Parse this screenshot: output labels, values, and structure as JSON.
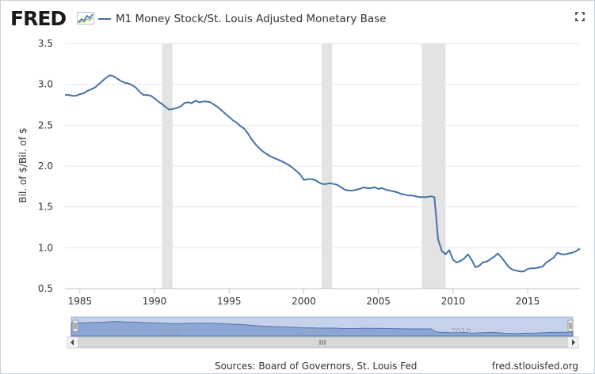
{
  "header": {
    "logo_text": "FRED",
    "logo_icon": "line-chart-icon",
    "series_title": "M1 Money Stock/St. Louis Adjusted Monetary Base",
    "series_color": "#4572a7",
    "fullscreen_icon": "fullscreen-icon"
  },
  "footer": {
    "sources": "Sources: Board of Governors, St. Louis Fed",
    "site": "fred.stlouisfed.org"
  },
  "navigator": {
    "year_labels": [
      "1990",
      "2000",
      "2010"
    ],
    "scroll_left_icon": "chevron-left-icon",
    "scroll_right_icon": "chevron-right-icon",
    "grip_icon": "grip-icon"
  },
  "colors": {
    "line": "#4572a7",
    "recession": "#e3e3e3",
    "navigator_fill": "#c5d3ea",
    "navigator_line": "#4f74b5",
    "scrollbar": "#d8d8d8"
  },
  "chart_data": {
    "type": "line",
    "title": "M1 Money Stock/St. Louis Adjusted Monetary Base",
    "ylabel": "Bil. of $/Bil. of $",
    "xlabel": "",
    "xlim": [
      1984.0,
      2018.5
    ],
    "ylim": [
      0.5,
      3.5
    ],
    "x_ticks": [
      1985,
      1990,
      1995,
      2000,
      2005,
      2010,
      2015
    ],
    "y_ticks": [
      0.5,
      1.0,
      1.5,
      2.0,
      2.5,
      3.0,
      3.5
    ],
    "y_tick_labels": [
      "0.5",
      "1.0",
      "1.5",
      "2.0",
      "2.5",
      "3.0",
      "3.5"
    ],
    "grid": "horizontal",
    "recessions": [
      [
        1990.5,
        1991.2
      ],
      [
        2001.2,
        2001.9
      ],
      [
        2007.9,
        2009.5
      ]
    ],
    "series": [
      {
        "name": "M1 Money Stock/St. Louis Adjusted Monetary Base",
        "x": [
          1984.0,
          1984.25,
          1984.5,
          1984.75,
          1985.0,
          1985.25,
          1985.5,
          1985.75,
          1986.0,
          1986.25,
          1986.5,
          1986.75,
          1987.0,
          1987.25,
          1987.5,
          1987.75,
          1988.0,
          1988.25,
          1988.5,
          1988.75,
          1989.0,
          1989.25,
          1989.5,
          1989.75,
          1990.0,
          1990.25,
          1990.5,
          1990.75,
          1991.0,
          1991.25,
          1991.5,
          1991.75,
          1992.0,
          1992.25,
          1992.5,
          1992.75,
          1993.0,
          1993.25,
          1993.5,
          1993.75,
          1994.0,
          1994.25,
          1994.5,
          1994.75,
          1995.0,
          1995.25,
          1995.5,
          1995.75,
          1996.0,
          1996.25,
          1996.5,
          1996.75,
          1997.0,
          1997.25,
          1997.5,
          1997.75,
          1998.0,
          1998.25,
          1998.5,
          1998.75,
          1999.0,
          1999.25,
          1999.5,
          1999.75,
          2000.0,
          2000.25,
          2000.5,
          2000.75,
          2001.0,
          2001.25,
          2001.5,
          2001.75,
          2002.0,
          2002.25,
          2002.5,
          2002.75,
          2003.0,
          2003.25,
          2003.5,
          2003.75,
          2004.0,
          2004.25,
          2004.5,
          2004.75,
          2005.0,
          2005.25,
          2005.5,
          2005.75,
          2006.0,
          2006.25,
          2006.5,
          2006.75,
          2007.0,
          2007.25,
          2007.5,
          2007.75,
          2008.0,
          2008.25,
          2008.5,
          2008.75,
          2009.0,
          2009.25,
          2009.5,
          2009.75,
          2010.0,
          2010.25,
          2010.5,
          2010.75,
          2011.0,
          2011.25,
          2011.5,
          2011.75,
          2012.0,
          2012.25,
          2012.5,
          2012.75,
          2013.0,
          2013.25,
          2013.5,
          2013.75,
          2014.0,
          2014.25,
          2014.5,
          2014.75,
          2015.0,
          2015.25,
          2015.5,
          2015.75,
          2016.0,
          2016.25,
          2016.5,
          2016.75,
          2017.0,
          2017.25,
          2017.5,
          2017.75,
          2018.0,
          2018.25,
          2018.5
        ],
        "values": [
          2.87,
          2.87,
          2.86,
          2.86,
          2.88,
          2.89,
          2.92,
          2.94,
          2.96,
          3.0,
          3.04,
          3.08,
          3.11,
          3.1,
          3.07,
          3.04,
          3.02,
          3.01,
          2.99,
          2.96,
          2.91,
          2.87,
          2.87,
          2.86,
          2.83,
          2.79,
          2.76,
          2.72,
          2.69,
          2.7,
          2.71,
          2.73,
          2.77,
          2.78,
          2.77,
          2.8,
          2.78,
          2.79,
          2.79,
          2.78,
          2.75,
          2.72,
          2.68,
          2.64,
          2.6,
          2.56,
          2.53,
          2.49,
          2.46,
          2.4,
          2.33,
          2.27,
          2.22,
          2.18,
          2.15,
          2.12,
          2.1,
          2.08,
          2.06,
          2.04,
          2.01,
          1.98,
          1.94,
          1.9,
          1.83,
          1.84,
          1.84,
          1.83,
          1.8,
          1.78,
          1.78,
          1.79,
          1.78,
          1.77,
          1.74,
          1.71,
          1.7,
          1.7,
          1.71,
          1.72,
          1.74,
          1.73,
          1.73,
          1.74,
          1.72,
          1.73,
          1.71,
          1.7,
          1.69,
          1.68,
          1.66,
          1.65,
          1.64,
          1.64,
          1.63,
          1.62,
          1.62,
          1.62,
          1.63,
          1.62,
          1.1,
          0.96,
          0.92,
          0.97,
          0.85,
          0.82,
          0.84,
          0.87,
          0.92,
          0.85,
          0.76,
          0.78,
          0.82,
          0.83,
          0.86,
          0.89,
          0.93,
          0.88,
          0.82,
          0.76,
          0.73,
          0.72,
          0.71,
          0.71,
          0.74,
          0.75,
          0.75,
          0.76,
          0.77,
          0.82,
          0.85,
          0.88,
          0.94,
          0.92,
          0.92,
          0.93,
          0.94,
          0.96,
          0.99
        ]
      }
    ]
  }
}
